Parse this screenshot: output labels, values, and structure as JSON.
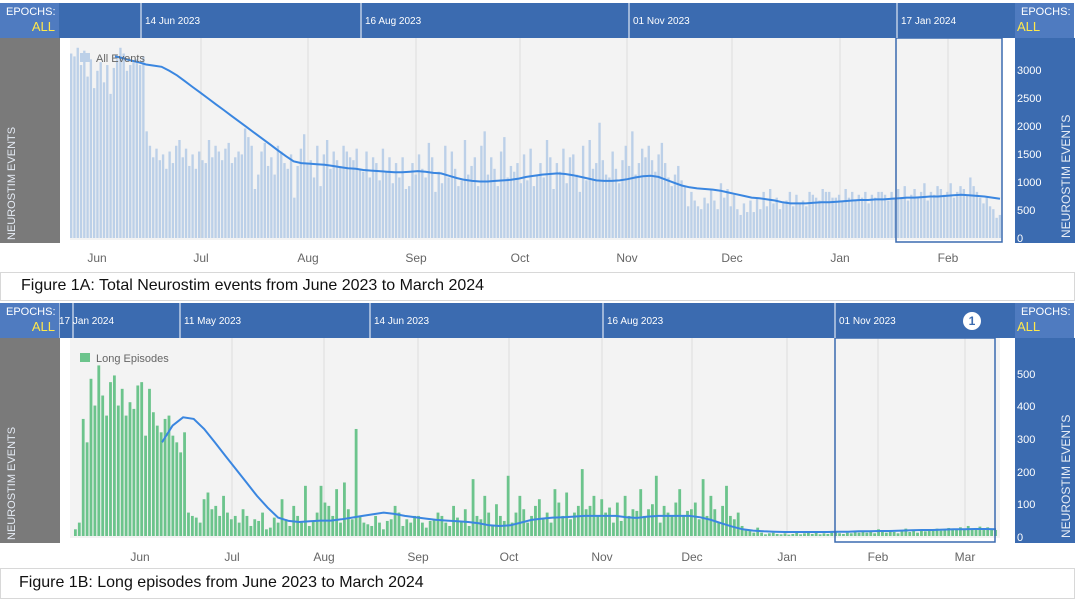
{
  "colors": {
    "header_bar": "#3b6bb0",
    "left_axis": "#7a7a7a",
    "all_events_bar": "#bcd0e8",
    "long_episodes_bar": "#6cc48c",
    "trend_line": "#3a86e0",
    "epochs_label": "#ffe84a"
  },
  "epochs": {
    "label": "EPOCHS:",
    "value": "ALL"
  },
  "axis_label": "NEUROSTIM EVENTS",
  "badge": "1",
  "captions": {
    "fig1a": "Figure 1A: Total Neurostim events from June 2023 to March 2024",
    "fig1b": "Figure 1B: Long episodes from June 2023 to March 2024"
  },
  "chart_data": [
    {
      "type": "bar",
      "series": [
        {
          "name": "All Events"
        }
      ],
      "x_ticks": [
        "Jun",
        "Jul",
        "Aug",
        "Sep",
        "Oct",
        "Nov",
        "Dec",
        "Jan",
        "Feb"
      ],
      "epoch_markers": [
        "14 Jun 2023",
        "16 Aug 2023",
        "01 Nov 2023",
        "17 Jan 2024"
      ],
      "y_ticks": [
        "3000",
        "2500",
        "2000",
        "1500",
        "1000",
        "500",
        "0"
      ],
      "ylim": [
        0,
        3400
      ],
      "grid": true,
      "legend": "top-left",
      "bar_values": [
        3200,
        3150,
        3300,
        3000,
        3250,
        2800,
        3100,
        2600,
        2900,
        3050,
        2700,
        3000,
        2500,
        2950,
        3100,
        3300,
        3200,
        2900,
        3000,
        3050,
        3100,
        3000,
        3150,
        1850,
        1600,
        1400,
        1550,
        1350,
        1450,
        1200,
        1500,
        1300,
        1600,
        1700,
        1400,
        1550,
        1250,
        1450,
        1200,
        1500,
        1350,
        1300,
        1700,
        1400,
        1600,
        1500,
        1350,
        1550,
        1650,
        1300,
        1400,
        1500,
        1450,
        1900,
        1750,
        1600,
        850,
        1100,
        1500,
        1650,
        1250,
        1400,
        1100,
        1600,
        1500,
        1300,
        1200,
        1450,
        700,
        1250,
        1550,
        1800,
        1300,
        1350,
        1050,
        1600,
        900,
        1450,
        1700,
        1200,
        1500,
        1350,
        1250,
        1600,
        1500,
        1400,
        1350,
        1550,
        1200,
        1150,
        1500,
        1050,
        1400,
        1300,
        1000,
        1550,
        1150,
        1400,
        950,
        1300,
        1050,
        1400,
        850,
        900,
        1300,
        1100,
        1450,
        1200,
        1050,
        1650,
        1400,
        800,
        1150,
        950,
        1600,
        1050,
        1500,
        1200,
        900,
        1000,
        1700,
        1100,
        1250,
        1400,
        900,
        1600,
        1850,
        1100,
        1400,
        1200,
        900,
        1500,
        1750,
        1050,
        1250,
        1150,
        1300,
        950,
        1450,
        1000,
        1550,
        900,
        1100,
        1300,
        1050,
        1700,
        1400,
        850,
        1300,
        1150,
        1550,
        950,
        1400,
        1450,
        1100,
        800,
        1600,
        1000,
        1700,
        1200,
        1300,
        2000,
        1350,
        1100,
        1050,
        1500,
        1200,
        950,
        1350,
        1600,
        1250,
        1850,
        1100,
        1300,
        1550,
        1400,
        1600,
        1350,
        1150,
        1450,
        1650,
        1300,
        1050,
        900,
        1100,
        1250,
        1000,
        900,
        550,
        800,
        650,
        550,
        500,
        700,
        600,
        850,
        650,
        500,
        950,
        700,
        850,
        550,
        750,
        500,
        400,
        600,
        450,
        650,
        450,
        700,
        500,
        800,
        550,
        850,
        600,
        700,
        500,
        600,
        650,
        800,
        550,
        750,
        600,
        650,
        550,
        800,
        750,
        700,
        650,
        850,
        800,
        800,
        700,
        700,
        750,
        650,
        850,
        700,
        800,
        650,
        750,
        700,
        800,
        600,
        750,
        700,
        800,
        800,
        750,
        650,
        800,
        700,
        850,
        700,
        900,
        650,
        750,
        850,
        700,
        800,
        950,
        650,
        800,
        750,
        900,
        850,
        750,
        800,
        950,
        700,
        800,
        900,
        850,
        750,
        1050,
        900,
        800,
        700,
        600,
        700,
        550,
        500,
        350,
        400
      ],
      "trend_values": [
        3150,
        3120,
        3080,
        3050,
        3010,
        2990,
        2970,
        2900,
        2820,
        2720,
        2620,
        2520,
        2420,
        2320,
        2220,
        2120,
        2020,
        1920,
        1820,
        1720,
        1620,
        1520,
        1420,
        1330,
        1300,
        1290,
        1280,
        1270,
        1250,
        1230,
        1210,
        1200,
        1180,
        1170,
        1160,
        1150,
        1140,
        1140,
        1150,
        1160,
        1150,
        1130,
        1120,
        1080,
        1040,
        1010,
        990,
        980,
        980,
        990,
        1000,
        1010,
        1030,
        1060,
        1080,
        1100,
        1110,
        1120,
        1110,
        1090,
        1060,
        1030,
        1000,
        990,
        990,
        1000,
        1020,
        1050,
        1070,
        1080,
        1060,
        1010,
        960,
        910,
        880,
        860,
        850,
        840,
        820,
        790,
        760,
        730,
        700,
        690,
        670,
        650,
        620,
        600,
        600,
        600,
        610,
        620,
        620,
        630,
        640,
        650,
        660,
        660,
        670,
        670,
        680,
        690,
        700,
        700,
        710,
        720,
        720,
        730,
        740,
        750,
        740,
        730,
        720,
        700,
        680
      ]
    },
    {
      "type": "bar",
      "series": [
        {
          "name": "Long Episodes"
        }
      ],
      "x_ticks": [
        "Jun",
        "Jul",
        "Aug",
        "Sep",
        "Oct",
        "Nov",
        "Dec",
        "Jan",
        "Feb",
        "Mar"
      ],
      "epoch_markers": [
        "11 May 2023",
        "14 Jun 2023",
        "16 Aug 2023",
        "01 Nov 2023",
        "17 Jan 2024"
      ],
      "y_ticks": [
        "500",
        "400",
        "300",
        "200",
        "100",
        "0"
      ],
      "ylim": [
        0,
        580
      ],
      "grid": true,
      "legend": "top-left",
      "bar_values": [
        20,
        40,
        350,
        280,
        470,
        390,
        510,
        420,
        360,
        460,
        480,
        390,
        440,
        360,
        400,
        380,
        450,
        460,
        300,
        440,
        370,
        330,
        310,
        350,
        360,
        300,
        280,
        250,
        310,
        70,
        60,
        55,
        40,
        110,
        130,
        80,
        90,
        60,
        120,
        70,
        50,
        60,
        40,
        80,
        60,
        30,
        50,
        45,
        70,
        20,
        25,
        55,
        40,
        110,
        50,
        30,
        90,
        60,
        40,
        150,
        30,
        45,
        70,
        150,
        100,
        90,
        60,
        140,
        40,
        160,
        80,
        50,
        320,
        60,
        40,
        35,
        30,
        60,
        40,
        20,
        45,
        50,
        90,
        70,
        30,
        50,
        40,
        60,
        60,
        40,
        25,
        45,
        50,
        70,
        60,
        40,
        30,
        90,
        55,
        45,
        80,
        30,
        170,
        60,
        50,
        120,
        70,
        30,
        95,
        60,
        45,
        180,
        40,
        70,
        120,
        80,
        40,
        60,
        90,
        110,
        50,
        70,
        40,
        140,
        100,
        60,
        130,
        50,
        70,
        90,
        200,
        80,
        90,
        120,
        60,
        110,
        70,
        85,
        40,
        100,
        45,
        120,
        60,
        80,
        75,
        140,
        60,
        80,
        95,
        180,
        40,
        90,
        70,
        60,
        100,
        140,
        60,
        75,
        80,
        100,
        50,
        170,
        60,
        120,
        80,
        40,
        90,
        150,
        60,
        50,
        70,
        30,
        20,
        15,
        10,
        25,
        10,
        5,
        8,
        10,
        6,
        5,
        8,
        4,
        6,
        10,
        5,
        8,
        12,
        6,
        10,
        5,
        8,
        6,
        10,
        12,
        8,
        6,
        10,
        8,
        12,
        10,
        15,
        10,
        12,
        8,
        20,
        14,
        10,
        18,
        12,
        8,
        15,
        22,
        12,
        18,
        10,
        16,
        14,
        20,
        18,
        22,
        16,
        20,
        24,
        18,
        22,
        26,
        20,
        30,
        18,
        24,
        28,
        22,
        26,
        20,
        18
      ],
      "trend_values": [
        280,
        330,
        355,
        350,
        320,
        280,
        240,
        200,
        160,
        120,
        85,
        55,
        45,
        42,
        44,
        46,
        46,
        50,
        55,
        60,
        65,
        70,
        66,
        60,
        56,
        52,
        48,
        46,
        44,
        42,
        38,
        32,
        30,
        32,
        40,
        48,
        52,
        55,
        56,
        58,
        60,
        60,
        60,
        60,
        56,
        54,
        58,
        60,
        60,
        60,
        60,
        56,
        48,
        38,
        28,
        20,
        16,
        14,
        13,
        12,
        12,
        12,
        12,
        12,
        13,
        13,
        14,
        14,
        15,
        15,
        16,
        17,
        18,
        18,
        19,
        20,
        20,
        21,
        21,
        20
      ]
    }
  ]
}
